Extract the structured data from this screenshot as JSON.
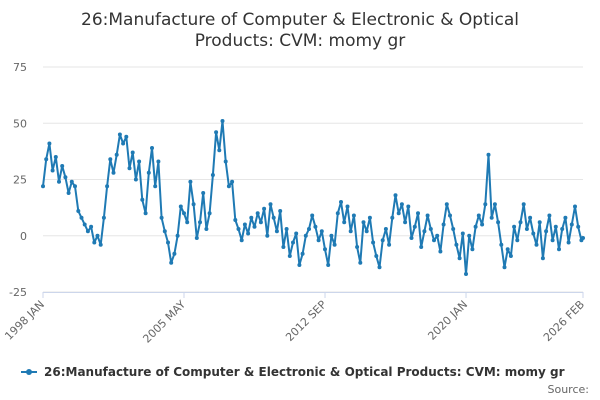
{
  "chart_data": {
    "type": "line",
    "title_line1": "26:Manufacture of Computer & Electronic & Optical",
    "title_line2": "Products: CVM: momy gr",
    "y_ticks": [
      "75",
      "50",
      "25",
      "0",
      "-25"
    ],
    "ylim": [
      -25,
      75
    ],
    "x_ticks": [
      "1998 JAN",
      "2005 MAY",
      "2012 SEP",
      "2020 JAN",
      "2026 FEB"
    ],
    "x_range": [
      "1998-01",
      "2026-02"
    ],
    "grid": "horizontal",
    "legend_position": "bottom",
    "color": "#1f7ab4",
    "series": [
      {
        "name": "26:Manufacture of Computer & Electronic & Optical Products: CVM: momy gr",
        "points": [
          [
            "1998-01",
            22
          ],
          [
            "1998-03",
            34
          ],
          [
            "1998-05",
            41
          ],
          [
            "1998-07",
            29
          ],
          [
            "1998-09",
            35
          ],
          [
            "1998-11",
            24
          ],
          [
            "1999-01",
            31
          ],
          [
            "1999-03",
            26
          ],
          [
            "1999-05",
            19
          ],
          [
            "1999-07",
            24
          ],
          [
            "1999-09",
            22
          ],
          [
            "1999-11",
            11
          ],
          [
            "2000-01",
            8
          ],
          [
            "2000-03",
            5
          ],
          [
            "2000-05",
            2
          ],
          [
            "2000-07",
            4
          ],
          [
            "2000-09",
            -3
          ],
          [
            "2000-11",
            0
          ],
          [
            "2001-01",
            -4
          ],
          [
            "2001-03",
            8
          ],
          [
            "2001-05",
            22
          ],
          [
            "2001-07",
            34
          ],
          [
            "2001-09",
            28
          ],
          [
            "2001-11",
            36
          ],
          [
            "2002-01",
            45
          ],
          [
            "2002-03",
            41
          ],
          [
            "2002-05",
            44
          ],
          [
            "2002-07",
            30
          ],
          [
            "2002-09",
            37
          ],
          [
            "2002-11",
            25
          ],
          [
            "2003-01",
            33
          ],
          [
            "2003-03",
            16
          ],
          [
            "2003-05",
            10
          ],
          [
            "2003-07",
            28
          ],
          [
            "2003-09",
            39
          ],
          [
            "2003-11",
            22
          ],
          [
            "2004-01",
            33
          ],
          [
            "2004-03",
            8
          ],
          [
            "2004-05",
            2
          ],
          [
            "2004-07",
            -3
          ],
          [
            "2004-09",
            -12
          ],
          [
            "2004-11",
            -8
          ],
          [
            "2005-01",
            0
          ],
          [
            "2005-03",
            13
          ],
          [
            "2005-05",
            10
          ],
          [
            "2005-07",
            6
          ],
          [
            "2005-09",
            24
          ],
          [
            "2005-11",
            14
          ],
          [
            "2006-01",
            -1
          ],
          [
            "2006-03",
            6
          ],
          [
            "2006-05",
            19
          ],
          [
            "2006-07",
            3
          ],
          [
            "2006-09",
            10
          ],
          [
            "2006-11",
            27
          ],
          [
            "2007-01",
            46
          ],
          [
            "2007-03",
            38
          ],
          [
            "2007-05",
            51
          ],
          [
            "2007-07",
            33
          ],
          [
            "2007-09",
            22
          ],
          [
            "2007-11",
            24
          ],
          [
            "2008-01",
            7
          ],
          [
            "2008-03",
            3
          ],
          [
            "2008-05",
            -2
          ],
          [
            "2008-07",
            5
          ],
          [
            "2008-09",
            1
          ],
          [
            "2008-11",
            8
          ],
          [
            "2009-01",
            4
          ],
          [
            "2009-03",
            10
          ],
          [
            "2009-05",
            6
          ],
          [
            "2009-07",
            12
          ],
          [
            "2009-09",
            0
          ],
          [
            "2009-11",
            14
          ],
          [
            "2010-01",
            8
          ],
          [
            "2010-03",
            2
          ],
          [
            "2010-05",
            11
          ],
          [
            "2010-07",
            -5
          ],
          [
            "2010-09",
            3
          ],
          [
            "2010-11",
            -9
          ],
          [
            "2011-01",
            -3
          ],
          [
            "2011-03",
            1
          ],
          [
            "2011-05",
            -13
          ],
          [
            "2011-07",
            -8
          ],
          [
            "2011-09",
            0
          ],
          [
            "2011-11",
            3
          ],
          [
            "2012-01",
            9
          ],
          [
            "2012-03",
            4
          ],
          [
            "2012-05",
            -2
          ],
          [
            "2012-07",
            2
          ],
          [
            "2012-09",
            -6
          ],
          [
            "2012-11",
            -13
          ],
          [
            "2013-01",
            0
          ],
          [
            "2013-03",
            -4
          ],
          [
            "2013-05",
            10
          ],
          [
            "2013-07",
            15
          ],
          [
            "2013-09",
            6
          ],
          [
            "2013-11",
            13
          ],
          [
            "2014-01",
            2
          ],
          [
            "2014-03",
            9
          ],
          [
            "2014-05",
            -5
          ],
          [
            "2014-07",
            -12
          ],
          [
            "2014-09",
            6
          ],
          [
            "2014-11",
            2
          ],
          [
            "2015-01",
            8
          ],
          [
            "2015-03",
            -3
          ],
          [
            "2015-05",
            -9
          ],
          [
            "2015-07",
            -14
          ],
          [
            "2015-09",
            -2
          ],
          [
            "2015-11",
            3
          ],
          [
            "2016-01",
            -4
          ],
          [
            "2016-03",
            8
          ],
          [
            "2016-05",
            18
          ],
          [
            "2016-07",
            10
          ],
          [
            "2016-09",
            14
          ],
          [
            "2016-11",
            6
          ],
          [
            "2017-01",
            13
          ],
          [
            "2017-03",
            -1
          ],
          [
            "2017-05",
            4
          ],
          [
            "2017-07",
            10
          ],
          [
            "2017-09",
            -5
          ],
          [
            "2017-11",
            2
          ],
          [
            "2018-01",
            9
          ],
          [
            "2018-03",
            3
          ],
          [
            "2018-05",
            -2
          ],
          [
            "2018-07",
            0
          ],
          [
            "2018-09",
            -7
          ],
          [
            "2018-11",
            5
          ],
          [
            "2019-01",
            14
          ],
          [
            "2019-03",
            9
          ],
          [
            "2019-05",
            3
          ],
          [
            "2019-07",
            -4
          ],
          [
            "2019-09",
            -10
          ],
          [
            "2019-11",
            1
          ],
          [
            "2020-01",
            -17
          ],
          [
            "2020-03",
            0
          ],
          [
            "2020-05",
            -6
          ],
          [
            "2020-07",
            4
          ],
          [
            "2020-09",
            9
          ],
          [
            "2020-11",
            5
          ],
          [
            "2021-01",
            14
          ],
          [
            "2021-03",
            36
          ],
          [
            "2021-05",
            8
          ],
          [
            "2021-07",
            14
          ],
          [
            "2021-09",
            6
          ],
          [
            "2021-11",
            -4
          ],
          [
            "2022-01",
            -14
          ],
          [
            "2022-03",
            -6
          ],
          [
            "2022-05",
            -9
          ],
          [
            "2022-07",
            4
          ],
          [
            "2022-09",
            -2
          ],
          [
            "2022-11",
            6
          ],
          [
            "2023-01",
            14
          ],
          [
            "2023-03",
            3
          ],
          [
            "2023-05",
            8
          ],
          [
            "2023-07",
            1
          ],
          [
            "2023-09",
            -4
          ],
          [
            "2023-11",
            6
          ],
          [
            "2024-01",
            -10
          ],
          [
            "2024-03",
            2
          ],
          [
            "2024-05",
            9
          ],
          [
            "2024-07",
            -2
          ],
          [
            "2024-09",
            4
          ],
          [
            "2024-11",
            -6
          ],
          [
            "2025-01",
            3
          ],
          [
            "2025-03",
            8
          ],
          [
            "2025-05",
            -3
          ],
          [
            "2025-07",
            5
          ],
          [
            "2025-09",
            13
          ],
          [
            "2025-11",
            4
          ],
          [
            "2026-01",
            -2
          ],
          [
            "2026-02",
            -1
          ]
        ]
      }
    ],
    "source_label": "Source:"
  }
}
